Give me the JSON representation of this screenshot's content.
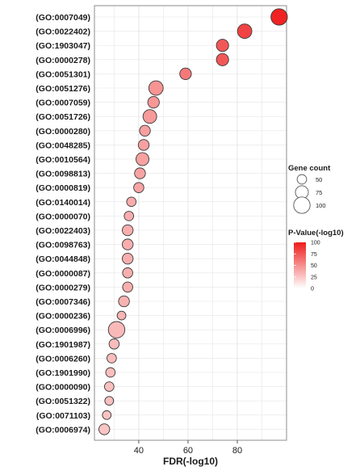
{
  "chart_data": {
    "type": "scatter",
    "xlabel": "FDR(-log10)",
    "ylabel": "",
    "xlim": [
      22,
      100
    ],
    "x_ticks": [
      40,
      60,
      80
    ],
    "grid": true,
    "categories": [
      "(GO:0007049)",
      "(GO:0022402)",
      "(GO:1903047)",
      "(GO:0000278)",
      "(GO:0051301)",
      "(GO:0051276)",
      "(GO:0007059)",
      "(GO:0051726)",
      "(GO:0000280)",
      "(GO:0048285)",
      "(GO:0010564)",
      "(GO:0098813)",
      "(GO:0000819)",
      "(GO:0140014)",
      "(GO:0000070)",
      "(GO:0022403)",
      "(GO:0098763)",
      "(GO:0044848)",
      "(GO:0000087)",
      "(GO:0000279)",
      "(GO:0007346)",
      "(GO:0000236)",
      "(GO:0006996)",
      "(GO:1901987)",
      "(GO:0006260)",
      "(GO:1901990)",
      "(GO:0000090)",
      "(GO:0051322)",
      "(GO:0071103)",
      "(GO:0006974)"
    ],
    "x": [
      97,
      83,
      74,
      74,
      59,
      47,
      46,
      44.5,
      42.5,
      42,
      41.5,
      40.5,
      40,
      37,
      36,
      35.5,
      35.5,
      35.5,
      35.5,
      35.5,
      34,
      33,
      31,
      30,
      29,
      28.5,
      28,
      28,
      27,
      26
    ],
    "gene_count": [
      100,
      85,
      70,
      70,
      65,
      85,
      65,
      80,
      60,
      60,
      75,
      60,
      55,
      50,
      50,
      60,
      60,
      60,
      55,
      55,
      60,
      45,
      100,
      55,
      50,
      50,
      50,
      45,
      45,
      60
    ],
    "p_value": [
      97,
      83,
      74,
      74,
      59,
      47,
      46,
      44.5,
      42.5,
      42,
      41.5,
      40.5,
      40,
      37,
      36,
      35.5,
      35.5,
      35.5,
      35.5,
      35.5,
      34,
      33,
      31,
      30,
      29,
      28.5,
      28,
      28,
      27,
      26
    ],
    "size_legend": {
      "title": "Gene count",
      "values": [
        50,
        75,
        100
      ]
    },
    "color_legend": {
      "title": "P-Value(-log10)",
      "ticks": [
        100,
        75,
        50,
        25,
        0
      ],
      "min": 0,
      "max": 100,
      "low_color": "#ffffff",
      "high_color": "#ee1c1c"
    },
    "colors": {
      "panel_bg": "#ffffff",
      "panel_border": "#8c8c8c",
      "grid": "#e6e6e6",
      "point_stroke": "#3a3a3a",
      "text": "#1a1a1a"
    },
    "legend_position": "right"
  }
}
